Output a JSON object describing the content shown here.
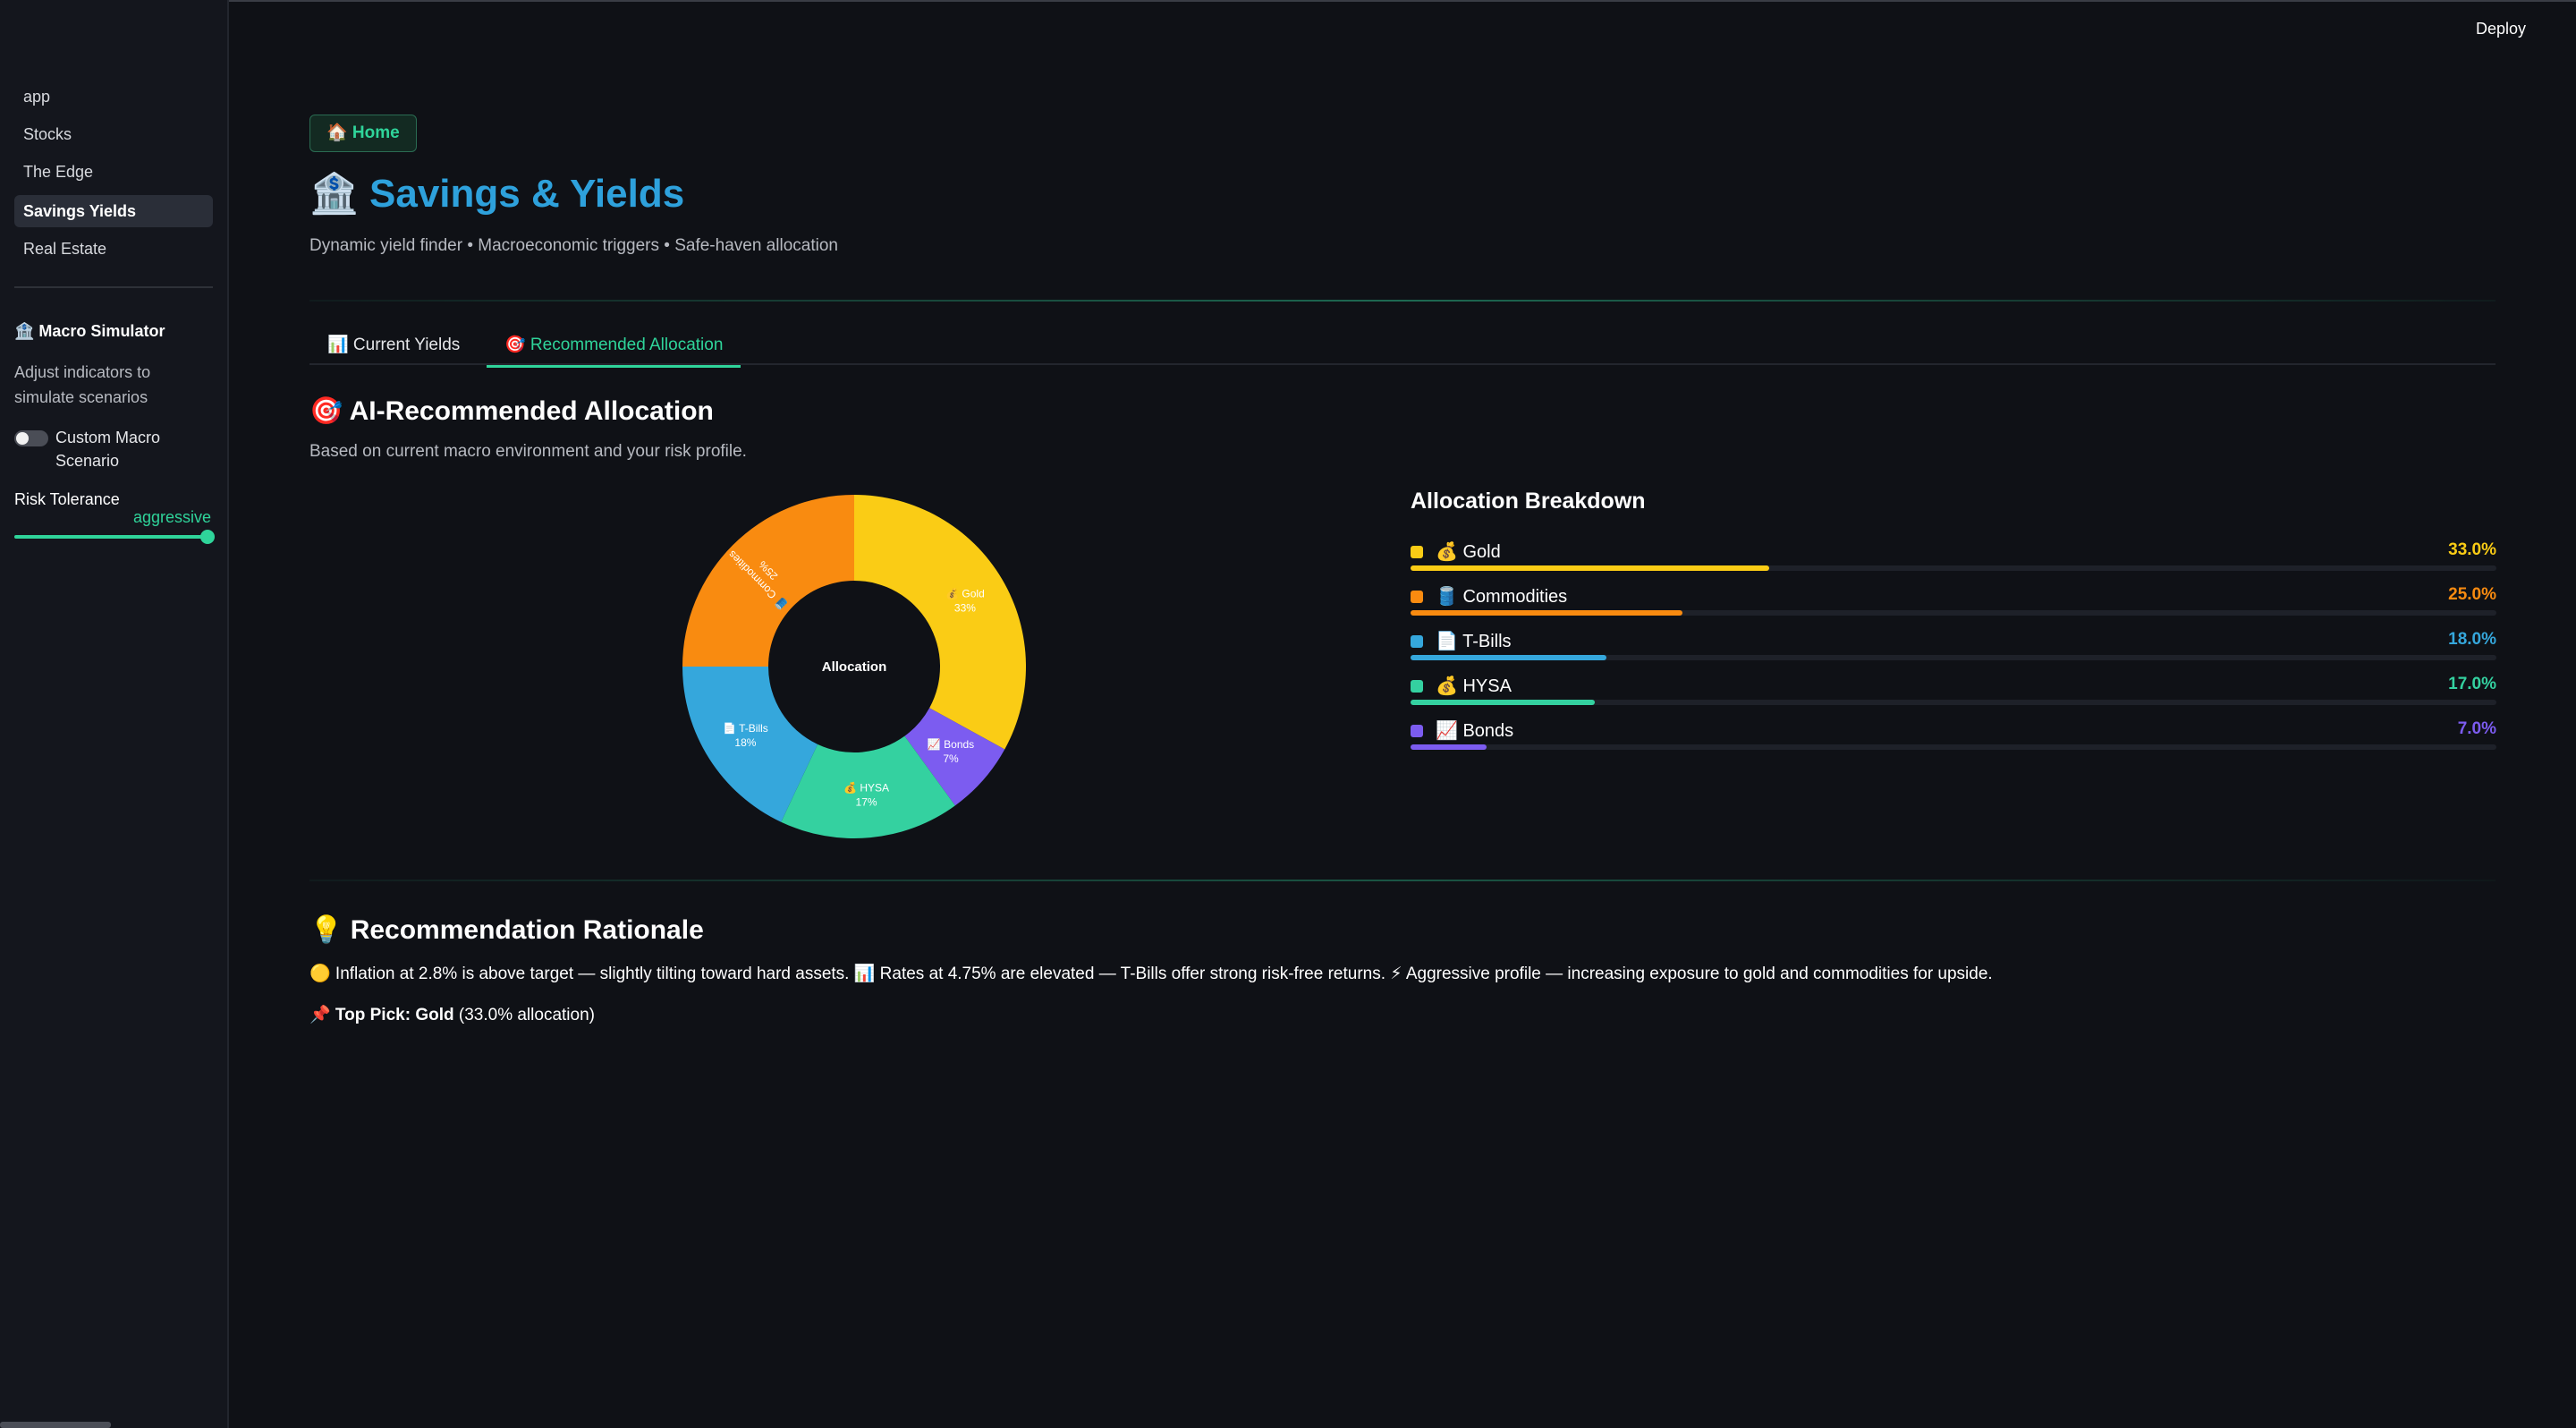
{
  "sidebar": {
    "items": [
      {
        "label": "app",
        "active": false
      },
      {
        "label": "Stocks",
        "active": false
      },
      {
        "label": "The Edge",
        "active": false
      },
      {
        "label": "Savings Yields",
        "active": true
      },
      {
        "label": "Real Estate",
        "active": false
      }
    ],
    "macro_title": "🏦 Macro Simulator",
    "macro_desc": "Adjust indicators to simulate scenarios",
    "custom_toggle_label": "Custom Macro Scenario",
    "custom_toggle_on": false,
    "risk_label": "Risk Tolerance",
    "risk_value": "aggressive"
  },
  "header": {
    "deploy_label": "Deploy"
  },
  "main": {
    "home_button": "🏠 Home",
    "title": "🏦 Savings & Yields",
    "subtitle": "Dynamic yield finder • Macroeconomic triggers • Safe-haven allocation",
    "tabs": [
      {
        "label": "📊 Current Yields",
        "active": false
      },
      {
        "label": "🎯 Recommended Allocation",
        "active": true
      }
    ],
    "section_title": "🎯 AI-Recommended Allocation",
    "section_desc": "Based on current macro environment and your risk profile.",
    "breakdown_title": "Allocation Breakdown",
    "rationale_title": "💡 Recommendation Rationale",
    "rationale_text": "🟡 Inflation at 2.8% is above target — slightly tilting toward hard assets. 📊 Rates at 4.75% are elevated — T-Bills offer strong risk-free returns. ⚡ Aggressive profile — increasing exposure to gold and commodities for upside.",
    "top_pick_label": "📌 Top Pick:",
    "top_pick_value": "Gold",
    "top_pick_suffix": "(33.0% allocation)"
  },
  "chart_data": {
    "type": "pie",
    "center_label": "Allocation",
    "slices": [
      {
        "name": "Gold",
        "icon": "💰",
        "label": "Gold",
        "value": 33.0,
        "pct_label": "33.0%",
        "donut_label": "33%",
        "color": "#facc15"
      },
      {
        "name": "Bonds",
        "icon": "📈",
        "label": "Bonds",
        "value": 7.0,
        "pct_label": "7.0%",
        "donut_label": "7%",
        "color": "#7c5cf0"
      },
      {
        "name": "HYSA",
        "icon": "💰",
        "label": "HYSA",
        "value": 17.0,
        "pct_label": "17.0%",
        "donut_label": "17%",
        "color": "#34d1a0"
      },
      {
        "name": "T-Bills",
        "icon": "📄",
        "label": "T-Bills",
        "value": 18.0,
        "pct_label": "18.0%",
        "donut_label": "18%",
        "color": "#35a7dc"
      },
      {
        "name": "Commodities",
        "icon": "🛢️",
        "label": "Commodities",
        "value": 25.0,
        "pct_label": "25.0%",
        "donut_label": "25%",
        "color": "#f98b10"
      }
    ],
    "breakdown_order": [
      "Gold",
      "Commodities",
      "T-Bills",
      "HYSA",
      "Bonds"
    ]
  }
}
